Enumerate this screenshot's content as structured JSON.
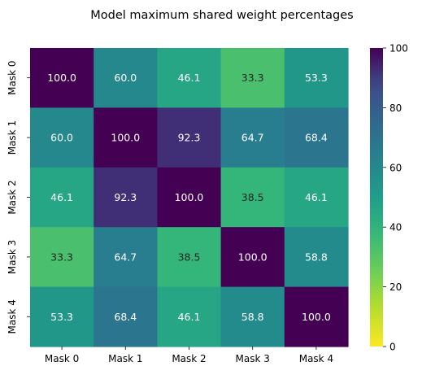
{
  "chart_data": {
    "type": "heatmap",
    "title": "Model maximum shared weight percentages",
    "xlabel": "",
    "ylabel": "",
    "x_categories": [
      "Mask 0",
      "Mask 1",
      "Mask 2",
      "Mask 3",
      "Mask 4"
    ],
    "y_categories": [
      "Mask 0",
      "Mask 1",
      "Mask 2",
      "Mask 3",
      "Mask 4"
    ],
    "values": [
      [
        100.0,
        60.0,
        46.1,
        33.3,
        53.3
      ],
      [
        60.0,
        100.0,
        92.3,
        64.7,
        68.4
      ],
      [
        46.1,
        92.3,
        100.0,
        38.5,
        46.1
      ],
      [
        33.3,
        64.7,
        38.5,
        100.0,
        58.8
      ],
      [
        53.3,
        68.4,
        46.1,
        58.8,
        100.0
      ]
    ],
    "value_labels": [
      [
        "100.0",
        "60.0",
        "46.1",
        "33.3",
        "53.3"
      ],
      [
        "60.0",
        "100.0",
        "92.3",
        "64.7",
        "68.4"
      ],
      [
        "46.1",
        "92.3",
        "100.0",
        "38.5",
        "46.1"
      ],
      [
        "33.3",
        "64.7",
        "38.5",
        "100.0",
        "58.8"
      ],
      [
        "53.3",
        "68.4",
        "46.1",
        "58.8",
        "100.0"
      ]
    ],
    "colormap": "viridis_r",
    "vmin": 0,
    "vmax": 100,
    "colorbar_ticks": [
      0,
      20,
      40,
      60,
      80,
      100
    ],
    "colorbar_tick_labels": [
      "0",
      "20",
      "40",
      "60",
      "80",
      "100"
    ],
    "grid": false,
    "colorbar_position": "right"
  }
}
